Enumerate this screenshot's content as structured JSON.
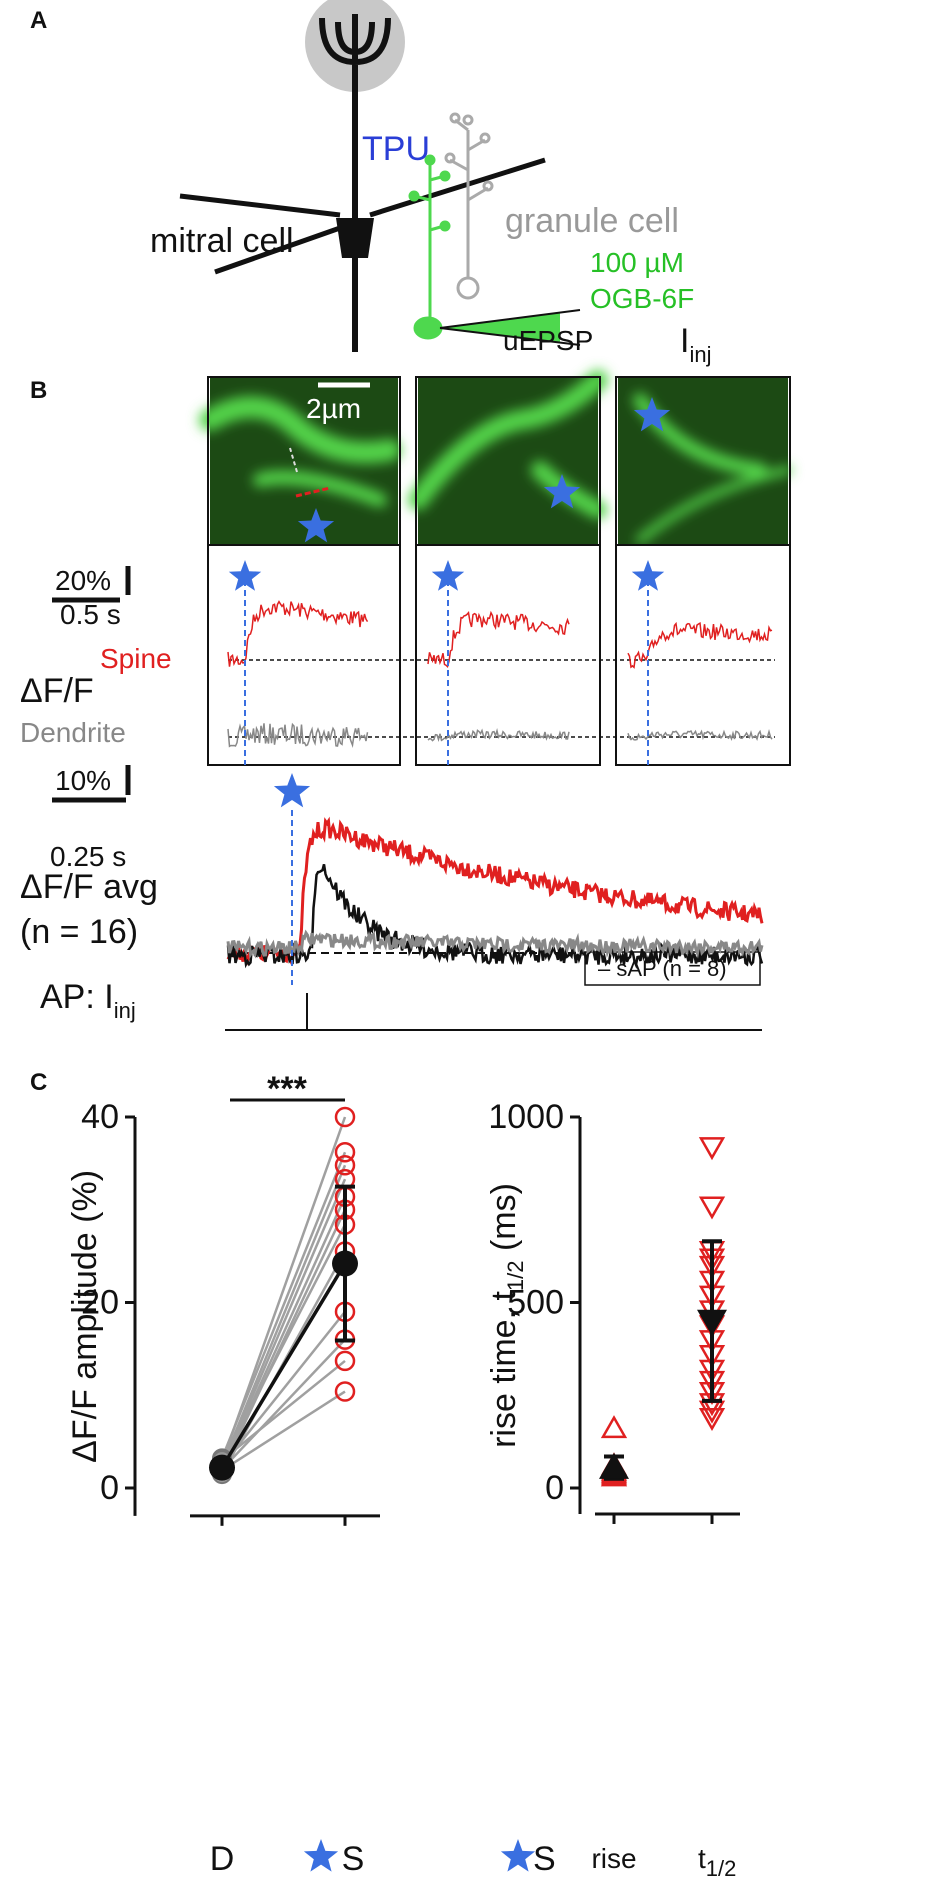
{
  "panel_a": {
    "label": "A",
    "tpu": "TPU",
    "granule": "granule cell",
    "conc": "100 µM",
    "dye": "OGB-6F",
    "mitral": "mitral cell",
    "uepsp": "uEPSP",
    "inj_i": "I",
    "inj_sub": "inj"
  },
  "panel_b": {
    "label": "B",
    "scale_um": "2µm",
    "scale_pct": "20%",
    "scale_time": "0.5 s",
    "spine": "Spine",
    "dff": "ΔF/F",
    "dendrite": "Dendrite",
    "avg_scale_pct": "10%",
    "avg_scale_time": "0.25 s",
    "avg_label": "ΔF/F avg",
    "avg_n": "(n = 16)",
    "legend": "– sAP (n = 8)",
    "ap_label": "AP: I",
    "ap_sub": "inj"
  },
  "chart_data": [
    {
      "type": "paired",
      "panel": "C",
      "ylabel": "ΔF/F amplitude (%)",
      "categories": [
        "D",
        "S"
      ],
      "ylim": [
        -3,
        40
      ],
      "yticks": [
        0,
        20,
        40
      ],
      "significance": "***",
      "values": [
        [
          2.8,
          40
        ],
        [
          3.2,
          36.2
        ],
        [
          2.5,
          34.8
        ],
        [
          2.2,
          33.3
        ],
        [
          2.0,
          31.4
        ],
        [
          1.8,
          30.0
        ],
        [
          2.6,
          28.4
        ],
        [
          1.5,
          25.5
        ],
        [
          2.4,
          19.0
        ],
        [
          2.0,
          16.0
        ],
        [
          3.0,
          13.7
        ],
        [
          1.9,
          10.4
        ]
      ],
      "mean": [
        2.2,
        24.2
      ],
      "error": [
        0.6,
        8.3
      ],
      "color": "#e02020",
      "line_color": "#a0a0a0"
    },
    {
      "type": "groups",
      "ylabel": "rise time, t",
      "ylabel_sub": "1/2",
      "ylabel_unit": " (ms)",
      "categories": [
        "rise",
        "t"
      ],
      "category_sub": "1/2",
      "legend": "S",
      "ylim": [
        -70,
        1000
      ],
      "yticks": [
        0,
        500,
        1000
      ],
      "groups": [
        [
          160,
          60,
          45,
          40,
          35,
          30
        ],
        [
          920,
          760,
          640,
          620,
          600,
          560,
          520,
          480,
          440,
          400,
          360,
          320,
          290,
          260,
          230,
          210,
          190
        ]
      ],
      "mean": [
        55,
        450
      ],
      "error": [
        30,
        215
      ],
      "color": "#e02020"
    }
  ]
}
